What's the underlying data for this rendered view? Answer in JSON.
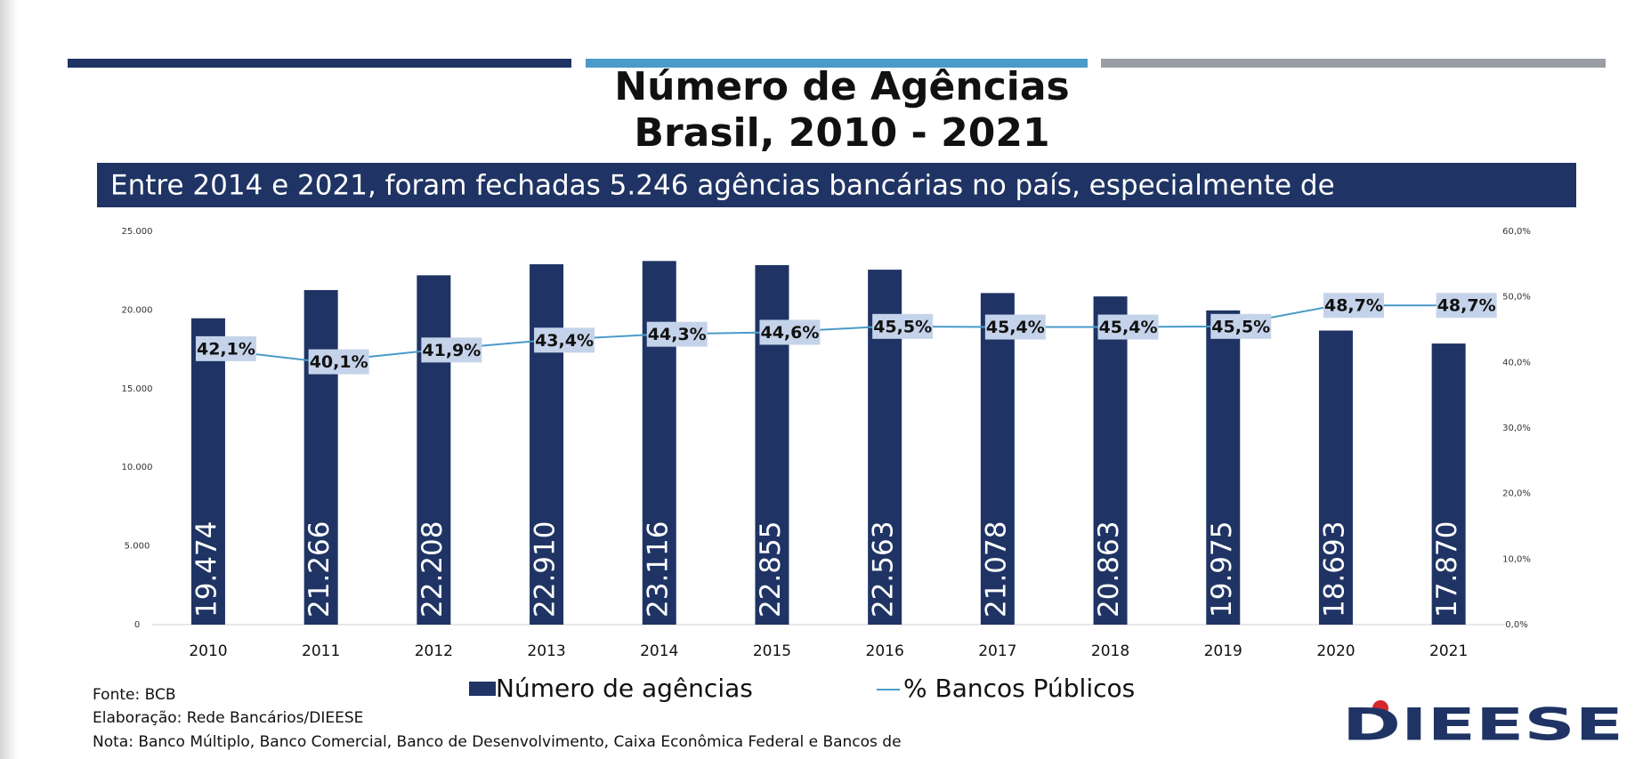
{
  "chart_data": {
    "type": "bar_line",
    "title": "Número de Agências",
    "subtitle": "Brasil, 2010 - 2021",
    "annotation": "Entre 2014 e 2021, foram fechadas 5.246 agências bancárias no país, especialmente de",
    "categories": [
      "2010",
      "2011",
      "2012",
      "2013",
      "2014",
      "2015",
      "2016",
      "2017",
      "2018",
      "2019",
      "2020",
      "2021"
    ],
    "series": [
      {
        "name": "Número de agências",
        "color": "#1f3464",
        "values": [
          19474,
          21266,
          22208,
          22910,
          23116,
          22855,
          22563,
          21078,
          20863,
          19975,
          18693,
          17870
        ],
        "value_labels": [
          "19.474",
          "21.266",
          "22.208",
          "22.910",
          "23.116",
          "22.855",
          "22.563",
          "21.078",
          "20.863",
          "19.975",
          "18.693",
          "17.870"
        ]
      },
      {
        "name": "% Bancos Públicos",
        "color": "#4a9bc9",
        "axis": "y2",
        "values": [
          42.1,
          40.1,
          41.9,
          43.4,
          44.3,
          44.6,
          45.5,
          45.4,
          45.4,
          45.5,
          48.7,
          48.7
        ],
        "value_labels": [
          "42,1%",
          "40,1%",
          "41,9%",
          "43,4%",
          "44,3%",
          "44,6%",
          "45,5%",
          "45,4%",
          "45,4%",
          "45,5%",
          "48,7%",
          "48,7%"
        ]
      }
    ],
    "ylim": [
      0,
      25000
    ],
    "yticks": [
      0,
      {
        "value": 5000,
        "label": "5.000"
      },
      {
        "value": 10000,
        "label": "10.000"
      },
      {
        "value": 15000,
        "label": "15.000"
      },
      {
        "value": 20000,
        "label": "20.000"
      },
      {
        "value": 25000,
        "label": "25.000"
      }
    ],
    "y2lim": [
      0,
      60
    ],
    "y2ticks": [
      {
        "value": 0,
        "label": "0,0%"
      },
      {
        "value": 10,
        "label": "10,0%"
      },
      {
        "value": 20,
        "label": "20,0%"
      },
      {
        "value": 30,
        "label": "30,0%"
      },
      {
        "value": 40,
        "label": "40,0%"
      },
      {
        "value": 50,
        "label": "50,0%"
      },
      {
        "value": 60,
        "label": "60,0%"
      }
    ],
    "legend": "bottom",
    "grid": false
  },
  "footer": {
    "source": "Fonte: BCB",
    "elaboration": "Elaboração: Rede Bancários/DIEESE",
    "note": "Nota: Banco Múltiplo, Banco Comercial, Banco de Desenvolvimento, Caixa Econômica Federal e Bancos de"
  },
  "logo": "DIEESE"
}
